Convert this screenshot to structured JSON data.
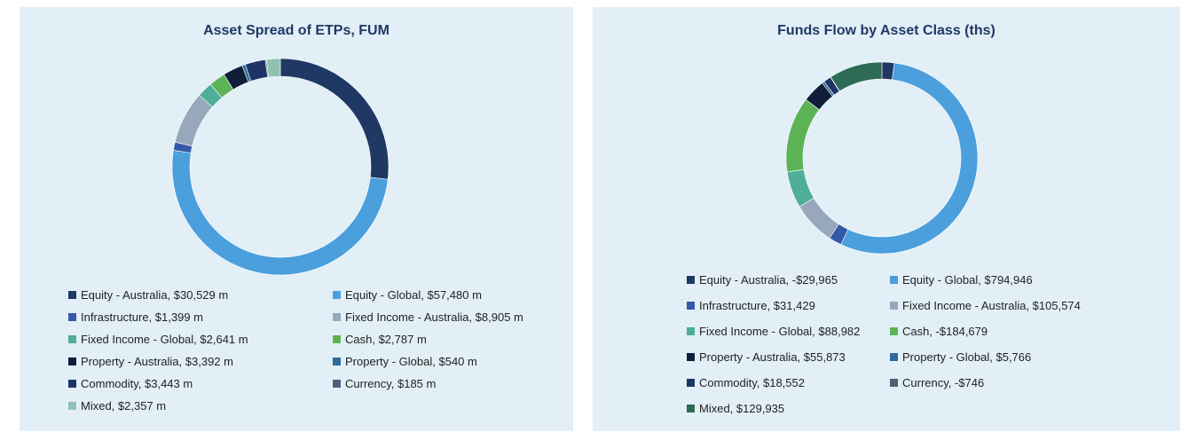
{
  "chart_data": [
    {
      "type": "pie",
      "title": "Asset Spread of ETPs, FUM",
      "legend_position": "bottom",
      "slices": [
        {
          "label": "Equity - Australia, $30,529 m",
          "value": 30529,
          "color": "#1f3864"
        },
        {
          "label": "Equity - Global, $57,480 m",
          "value": 57480,
          "color": "#4a9fdc"
        },
        {
          "label": "Infrastructure, $1,399 m",
          "value": 1399,
          "color": "#3559a8"
        },
        {
          "label": "Fixed Income - Australia, $8,905 m",
          "value": 8905,
          "color": "#97a8bc"
        },
        {
          "label": "Fixed Income - Global, $2,641 m",
          "value": 2641,
          "color": "#4fae9a"
        },
        {
          "label": "Cash, $2,787 m",
          "value": 2787,
          "color": "#5cb356"
        },
        {
          "label": "Property - Australia, $3,392 m",
          "value": 3392,
          "color": "#0f1f3a"
        },
        {
          "label": "Property - Global, $540 m",
          "value": 540,
          "color": "#2e6a9a"
        },
        {
          "label": "Commodity, $3,443 m",
          "value": 3443,
          "color": "#1d3566"
        },
        {
          "label": "Currency, $185 m",
          "value": 185,
          "color": "#4e6078"
        },
        {
          "label": "Mixed, $2,357 m",
          "value": 2357,
          "color": "#8fc2b2"
        }
      ]
    },
    {
      "type": "pie",
      "title": "Funds Flow by Asset Class (ths)",
      "legend_position": "bottom",
      "slices": [
        {
          "label": "Equity - Australia, -$29,965",
          "value": -29965,
          "color": "#1f3864"
        },
        {
          "label": "Equity - Global, $794,946",
          "value": 794946,
          "color": "#4a9fdc"
        },
        {
          "label": "Infrastructure, $31,429",
          "value": 31429,
          "color": "#3559a8"
        },
        {
          "label": "Fixed Income - Australia, $105,574",
          "value": 105574,
          "color": "#97a8bc"
        },
        {
          "label": "Fixed Income - Global, $88,982",
          "value": 88982,
          "color": "#4fae9a"
        },
        {
          "label": "Cash, -$184,679",
          "value": -184679,
          "color": "#5cb356"
        },
        {
          "label": "Property - Australia, $55,873",
          "value": 55873,
          "color": "#0f1f3a"
        },
        {
          "label": "Property - Global, $5,766",
          "value": 5766,
          "color": "#2e6a9a"
        },
        {
          "label": "Commodity, $18,552",
          "value": 18552,
          "color": "#1d3566"
        },
        {
          "label": "Currency, -$746",
          "value": -746,
          "color": "#4e6078"
        },
        {
          "label": "Mixed, $129,935",
          "value": 129935,
          "color": "#2d6b55"
        }
      ]
    }
  ]
}
